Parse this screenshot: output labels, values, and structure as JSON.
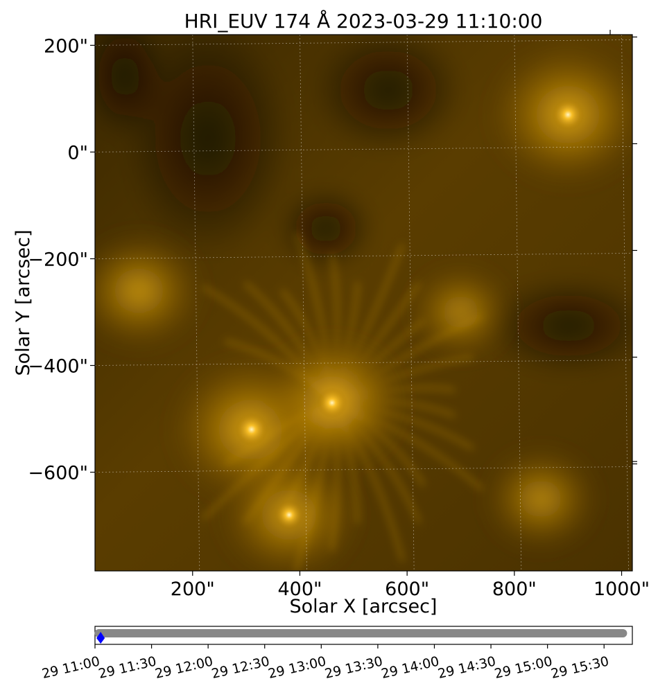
{
  "chart_data": {
    "type": "heatmap",
    "title": "HRI_EUV 174 Å 2023-03-29 11:10:00",
    "xlabel": "Solar X [arcsec]",
    "ylabel": "Solar Y [arcsec]",
    "x_ticks": [
      {
        "value": 200,
        "label": "200\""
      },
      {
        "value": 400,
        "label": "400\""
      },
      {
        "value": 600,
        "label": "600\""
      },
      {
        "value": 800,
        "label": "800\""
      },
      {
        "value": 1000,
        "label": "1000\""
      }
    ],
    "y_ticks": [
      {
        "value": 200,
        "label": "200\""
      },
      {
        "value": 0,
        "label": "0\""
      },
      {
        "value": -200,
        "label": "−200\""
      },
      {
        "value": -400,
        "label": "−400\""
      },
      {
        "value": -600,
        "label": "−600\""
      }
    ],
    "xlim": [
      18,
      1020
    ],
    "ylim": [
      -785,
      220
    ],
    "grid": true,
    "colormap": "solar orbiter hri_euv 174",
    "colors": {
      "dark": "#1a1100",
      "mid": "#a06e00",
      "bright": "#ffd24a",
      "highlight": "#fff6c8"
    },
    "features": [
      {
        "name": "loop footpoint",
        "x": 310,
        "y": -520,
        "intensity": 1.0
      },
      {
        "name": "fan centre",
        "x": 460,
        "y": -470,
        "intensity": 0.85
      },
      {
        "name": "active region",
        "x": 900,
        "y": 70,
        "intensity": 0.95
      },
      {
        "name": "plume",
        "x": 100,
        "y": -260,
        "intensity": 0.7
      },
      {
        "name": "bright knots",
        "x": 380,
        "y": -680,
        "intensity": 0.8
      },
      {
        "name": "loops east",
        "x": 850,
        "y": -650,
        "intensity": 0.55
      },
      {
        "name": "diffuse corona",
        "x": 700,
        "y": -300,
        "intensity": 0.45
      }
    ]
  },
  "timeline": {
    "type": "scatter",
    "x_start": "2023-03-29 11:00",
    "x_end": "2023-03-29 15:45",
    "series": [
      {
        "color": "#888888",
        "x_range": [
          "2023-03-29 11:02",
          "2023-03-29 15:40"
        ]
      },
      {
        "color": "#0000ff",
        "x": "2023-03-29 11:10"
      }
    ],
    "ticks": [
      "29 11:00",
      "29 11:30",
      "29 12:00",
      "29 12:30",
      "29 13:00",
      "29 13:30",
      "29 14:00",
      "29 14:30",
      "29 15:00",
      "29 15:30"
    ]
  }
}
